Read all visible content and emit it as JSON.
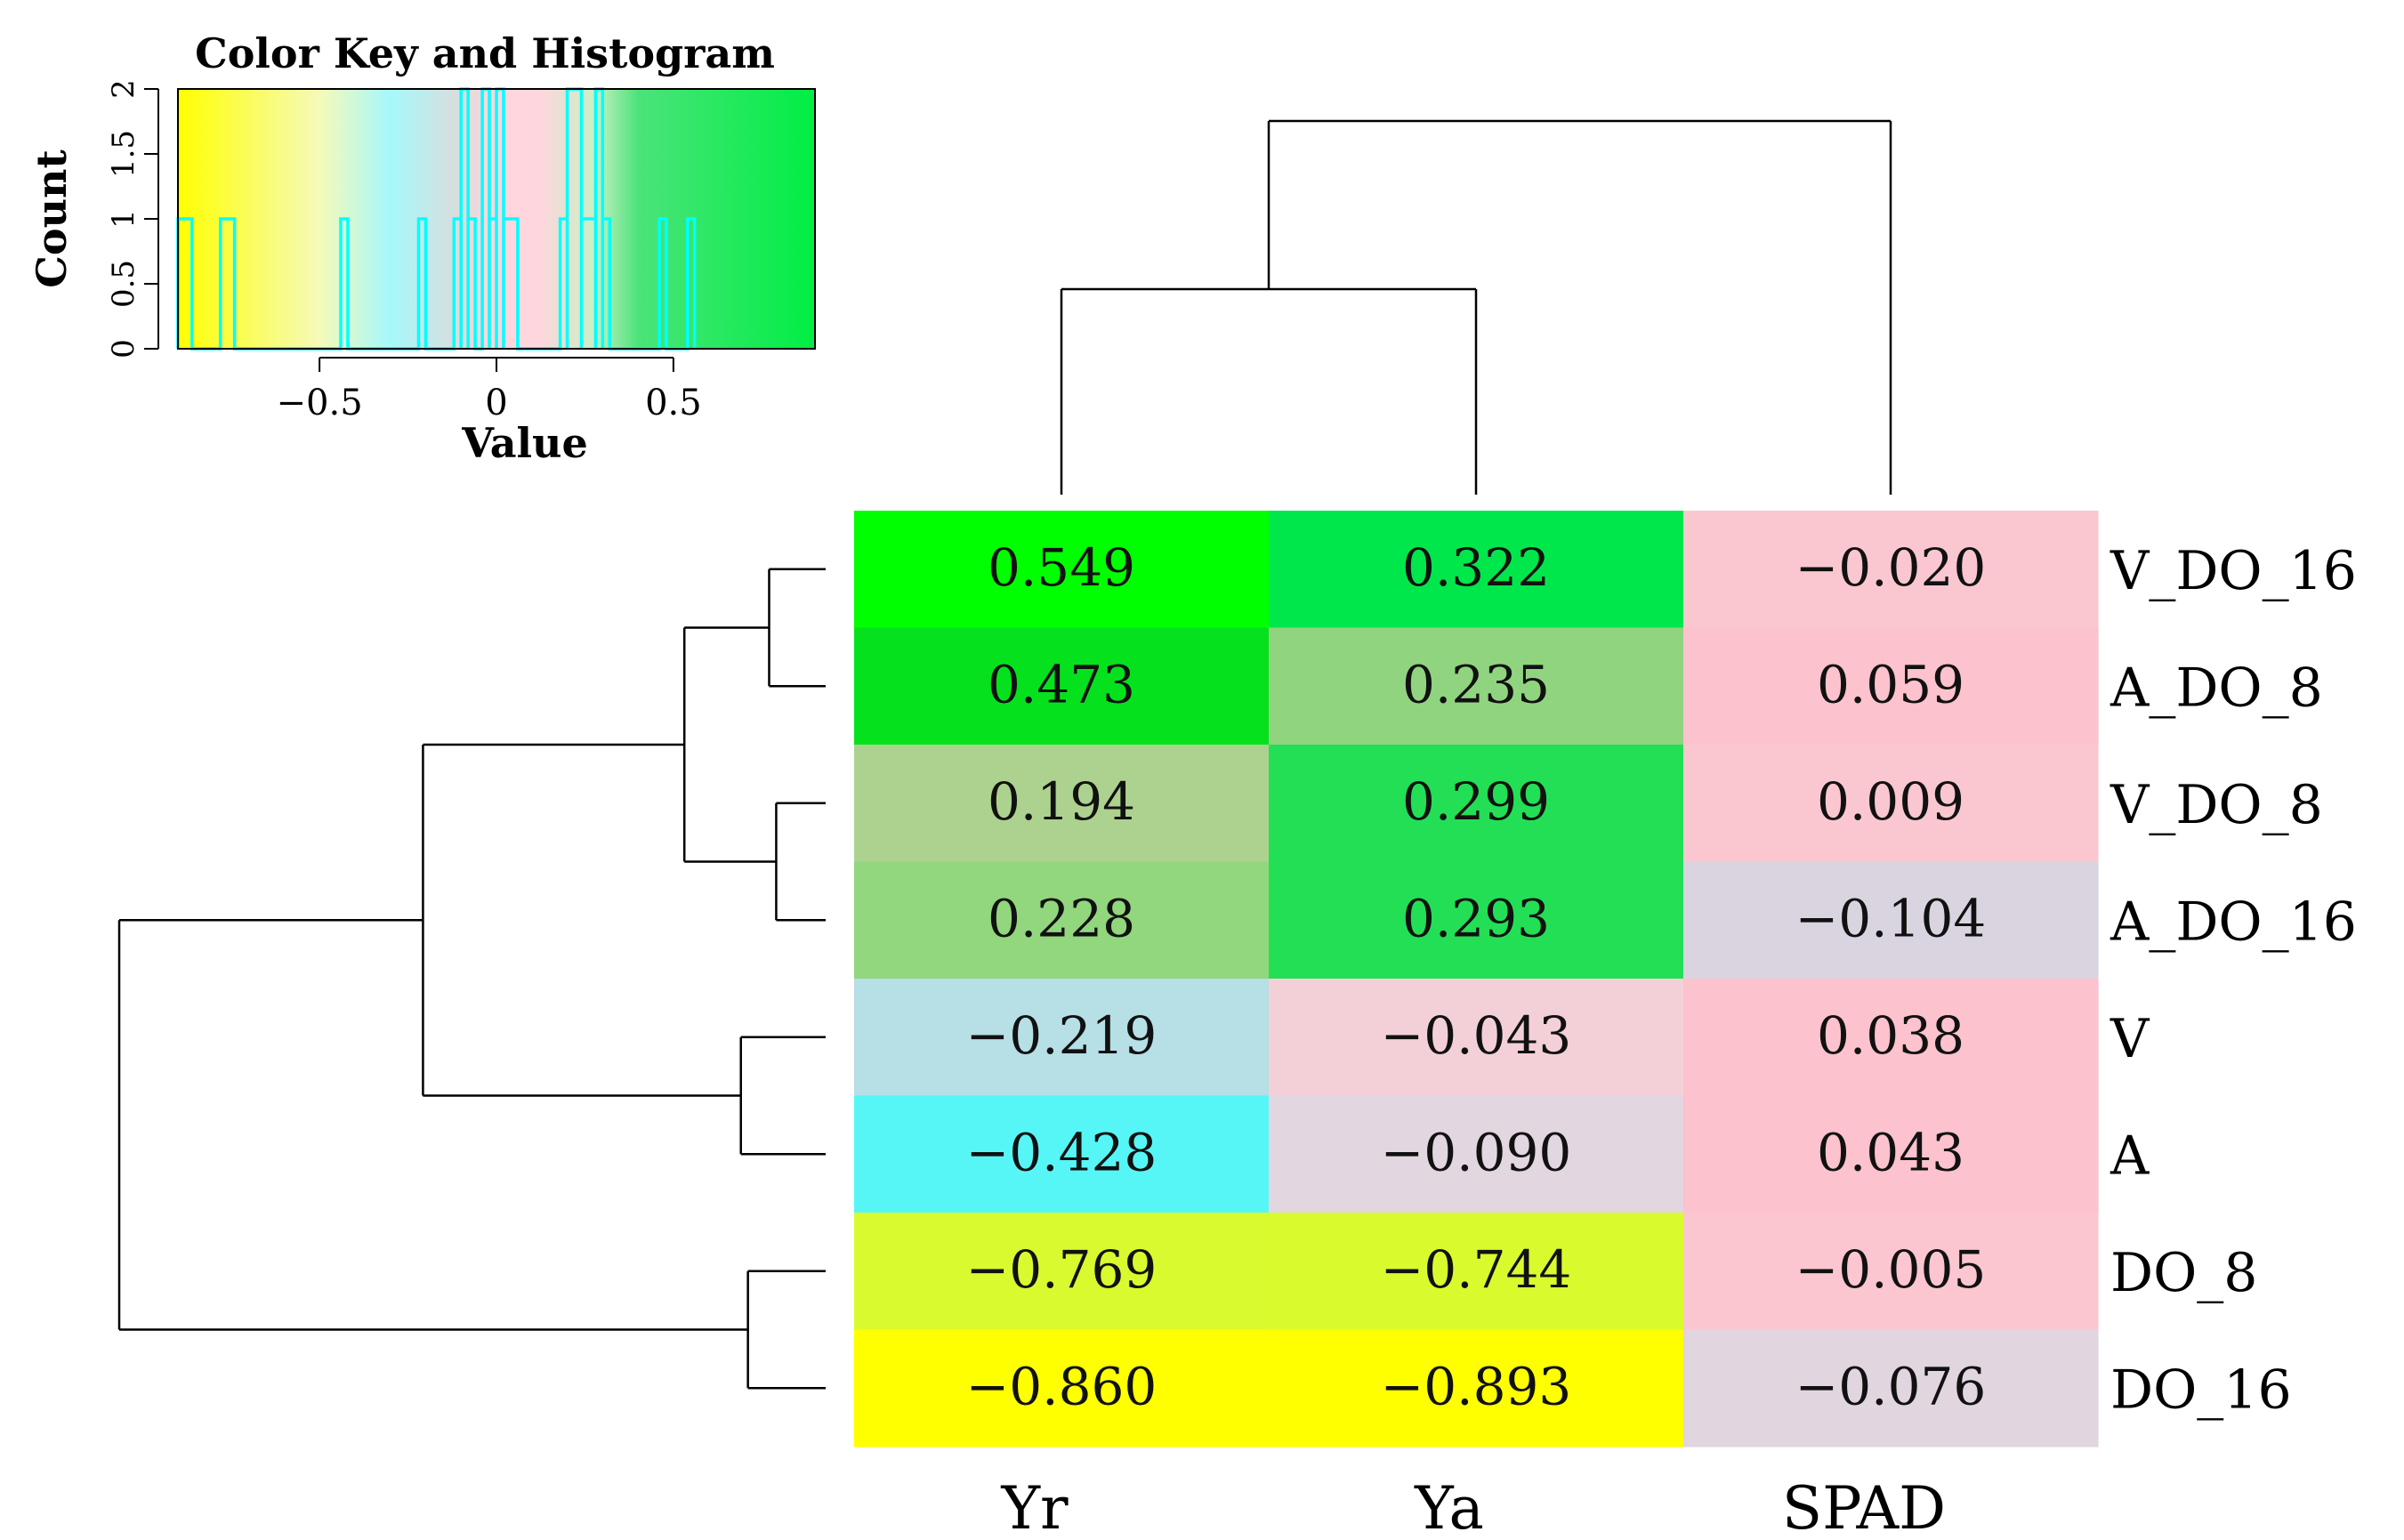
{
  "chart_data": {
    "type": "heatmap",
    "columns": [
      "Yr",
      "Ya",
      "SPAD"
    ],
    "rows": [
      "V_DO_16",
      "A_DO_8",
      "V_DO_8",
      "A_DO_16",
      "V",
      "A",
      "DO_8",
      "DO_16"
    ],
    "values": [
      [
        0.549,
        0.322,
        -0.02
      ],
      [
        0.473,
        0.235,
        0.059
      ],
      [
        0.194,
        0.299,
        0.009
      ],
      [
        0.228,
        0.293,
        -0.104
      ],
      [
        -0.219,
        -0.043,
        0.038
      ],
      [
        -0.428,
        -0.09,
        0.043
      ],
      [
        -0.769,
        -0.744,
        -0.005
      ],
      [
        -0.86,
        -0.893,
        -0.076
      ]
    ],
    "value_labels": [
      [
        "0.549",
        "0.322",
        "−0.020"
      ],
      [
        "0.473",
        "0.235",
        "0.059"
      ],
      [
        "0.194",
        "0.299",
        "0.009"
      ],
      [
        "0.228",
        "0.293",
        "−0.104"
      ],
      [
        "−0.219",
        "−0.043",
        "0.038"
      ],
      [
        "−0.428",
        "−0.090",
        "0.043"
      ],
      [
        "−0.769",
        "−0.744",
        "−0.005"
      ],
      [
        "−0.860",
        "−0.893",
        "−0.076"
      ]
    ],
    "cell_colors": [
      [
        "#00ff00",
        "#00e74b",
        "#fac7d1"
      ],
      [
        "#05e21d",
        "#90d47f",
        "#fcc2cd"
      ],
      [
        "#add28f",
        "#22df56",
        "#fac7d1"
      ],
      [
        "#92d67d",
        "#23df56",
        "#d9d4e0"
      ],
      [
        "#b6dfe6",
        "#f3d0d7",
        "#fcc2cd"
      ],
      [
        "#57f6f6",
        "#e2d6e0",
        "#fcc2cd"
      ],
      [
        "#d9fa2e",
        "#d9fb2d",
        "#fbc6d0"
      ],
      [
        "#ffff00",
        "#ffff00",
        "#e1d5df"
      ]
    ],
    "color_key": {
      "title": "Color Key and Histogram",
      "xlabel": "Value",
      "ylabel": "Count",
      "x_range": [
        -0.9,
        0.9
      ],
      "y_range": [
        0,
        2
      ],
      "x_ticks": [
        -0.5,
        0,
        0.5
      ],
      "x_tick_labels": [
        "−0.5",
        "0",
        "0.5"
      ],
      "y_ticks": [
        0,
        0.5,
        1,
        1.5,
        2
      ],
      "y_tick_labels": [
        "0",
        "0.5",
        "1",
        "1.5",
        "2"
      ],
      "gradient_stops": [
        {
          "value": -0.9,
          "color": "#ffff00"
        },
        {
          "value": -0.5,
          "color": "#f5fab8"
        },
        {
          "value": -0.3,
          "color": "#a6f8fb"
        },
        {
          "value": -0.1,
          "color": "#dcdcdc"
        },
        {
          "value": 0.0,
          "color": "#ffd6de"
        },
        {
          "value": 0.12,
          "color": "#ffd6de"
        },
        {
          "value": 0.28,
          "color": "#c9f0c4"
        },
        {
          "value": 0.4,
          "color": "#4be37a"
        },
        {
          "value": 0.9,
          "color": "#00ee44"
        }
      ],
      "histogram_bins": [
        {
          "from": -0.9,
          "to": -0.86,
          "count": 1
        },
        {
          "from": -0.78,
          "to": -0.74,
          "count": 1
        },
        {
          "from": -0.44,
          "to": -0.42,
          "count": 1
        },
        {
          "from": -0.22,
          "to": -0.2,
          "count": 1
        },
        {
          "from": -0.12,
          "to": -0.1,
          "count": 1
        },
        {
          "from": -0.1,
          "to": -0.08,
          "count": 2
        },
        {
          "from": -0.08,
          "to": -0.06,
          "count": 1
        },
        {
          "from": -0.04,
          "to": -0.02,
          "count": 2
        },
        {
          "from": -0.02,
          "to": 0.0,
          "count": 1
        },
        {
          "from": 0.0,
          "to": 0.02,
          "count": 2
        },
        {
          "from": 0.02,
          "to": 0.06,
          "count": 1
        },
        {
          "from": 0.18,
          "to": 0.2,
          "count": 1
        },
        {
          "from": 0.2,
          "to": 0.24,
          "count": 2
        },
        {
          "from": 0.24,
          "to": 0.28,
          "count": 1
        },
        {
          "from": 0.28,
          "to": 0.3,
          "count": 2
        },
        {
          "from": 0.3,
          "to": 0.32,
          "count": 1
        },
        {
          "from": 0.46,
          "to": 0.48,
          "count": 1
        },
        {
          "from": 0.54,
          "to": 0.56,
          "count": 1
        }
      ],
      "histogram_color": "#00ffff"
    },
    "column_dendrogram": {
      "merges": [
        {
          "a": "Yr",
          "b": "Ya",
          "height": 0.55
        },
        {
          "a": "Yr+Ya",
          "b": "SPAD",
          "height": 1.0
        }
      ]
    },
    "row_dendrogram": {
      "merges": [
        {
          "a": "V_DO_16",
          "b": "A_DO_8",
          "height": 0.08
        },
        {
          "a": "V_DO_8",
          "b": "A_DO_16",
          "height": 0.07
        },
        {
          "a": "V_DO_16+A_DO_8",
          "b": "V_DO_8+A_DO_16",
          "height": 0.2
        },
        {
          "a": "V",
          "b": "A",
          "height": 0.12
        },
        {
          "a": "DO_8",
          "b": "DO_16",
          "height": 0.11
        },
        {
          "a": "top4",
          "b": "V+A",
          "height": 0.57
        },
        {
          "a": "six",
          "b": "DO_8+DO_16",
          "height": 1.0
        }
      ]
    }
  }
}
